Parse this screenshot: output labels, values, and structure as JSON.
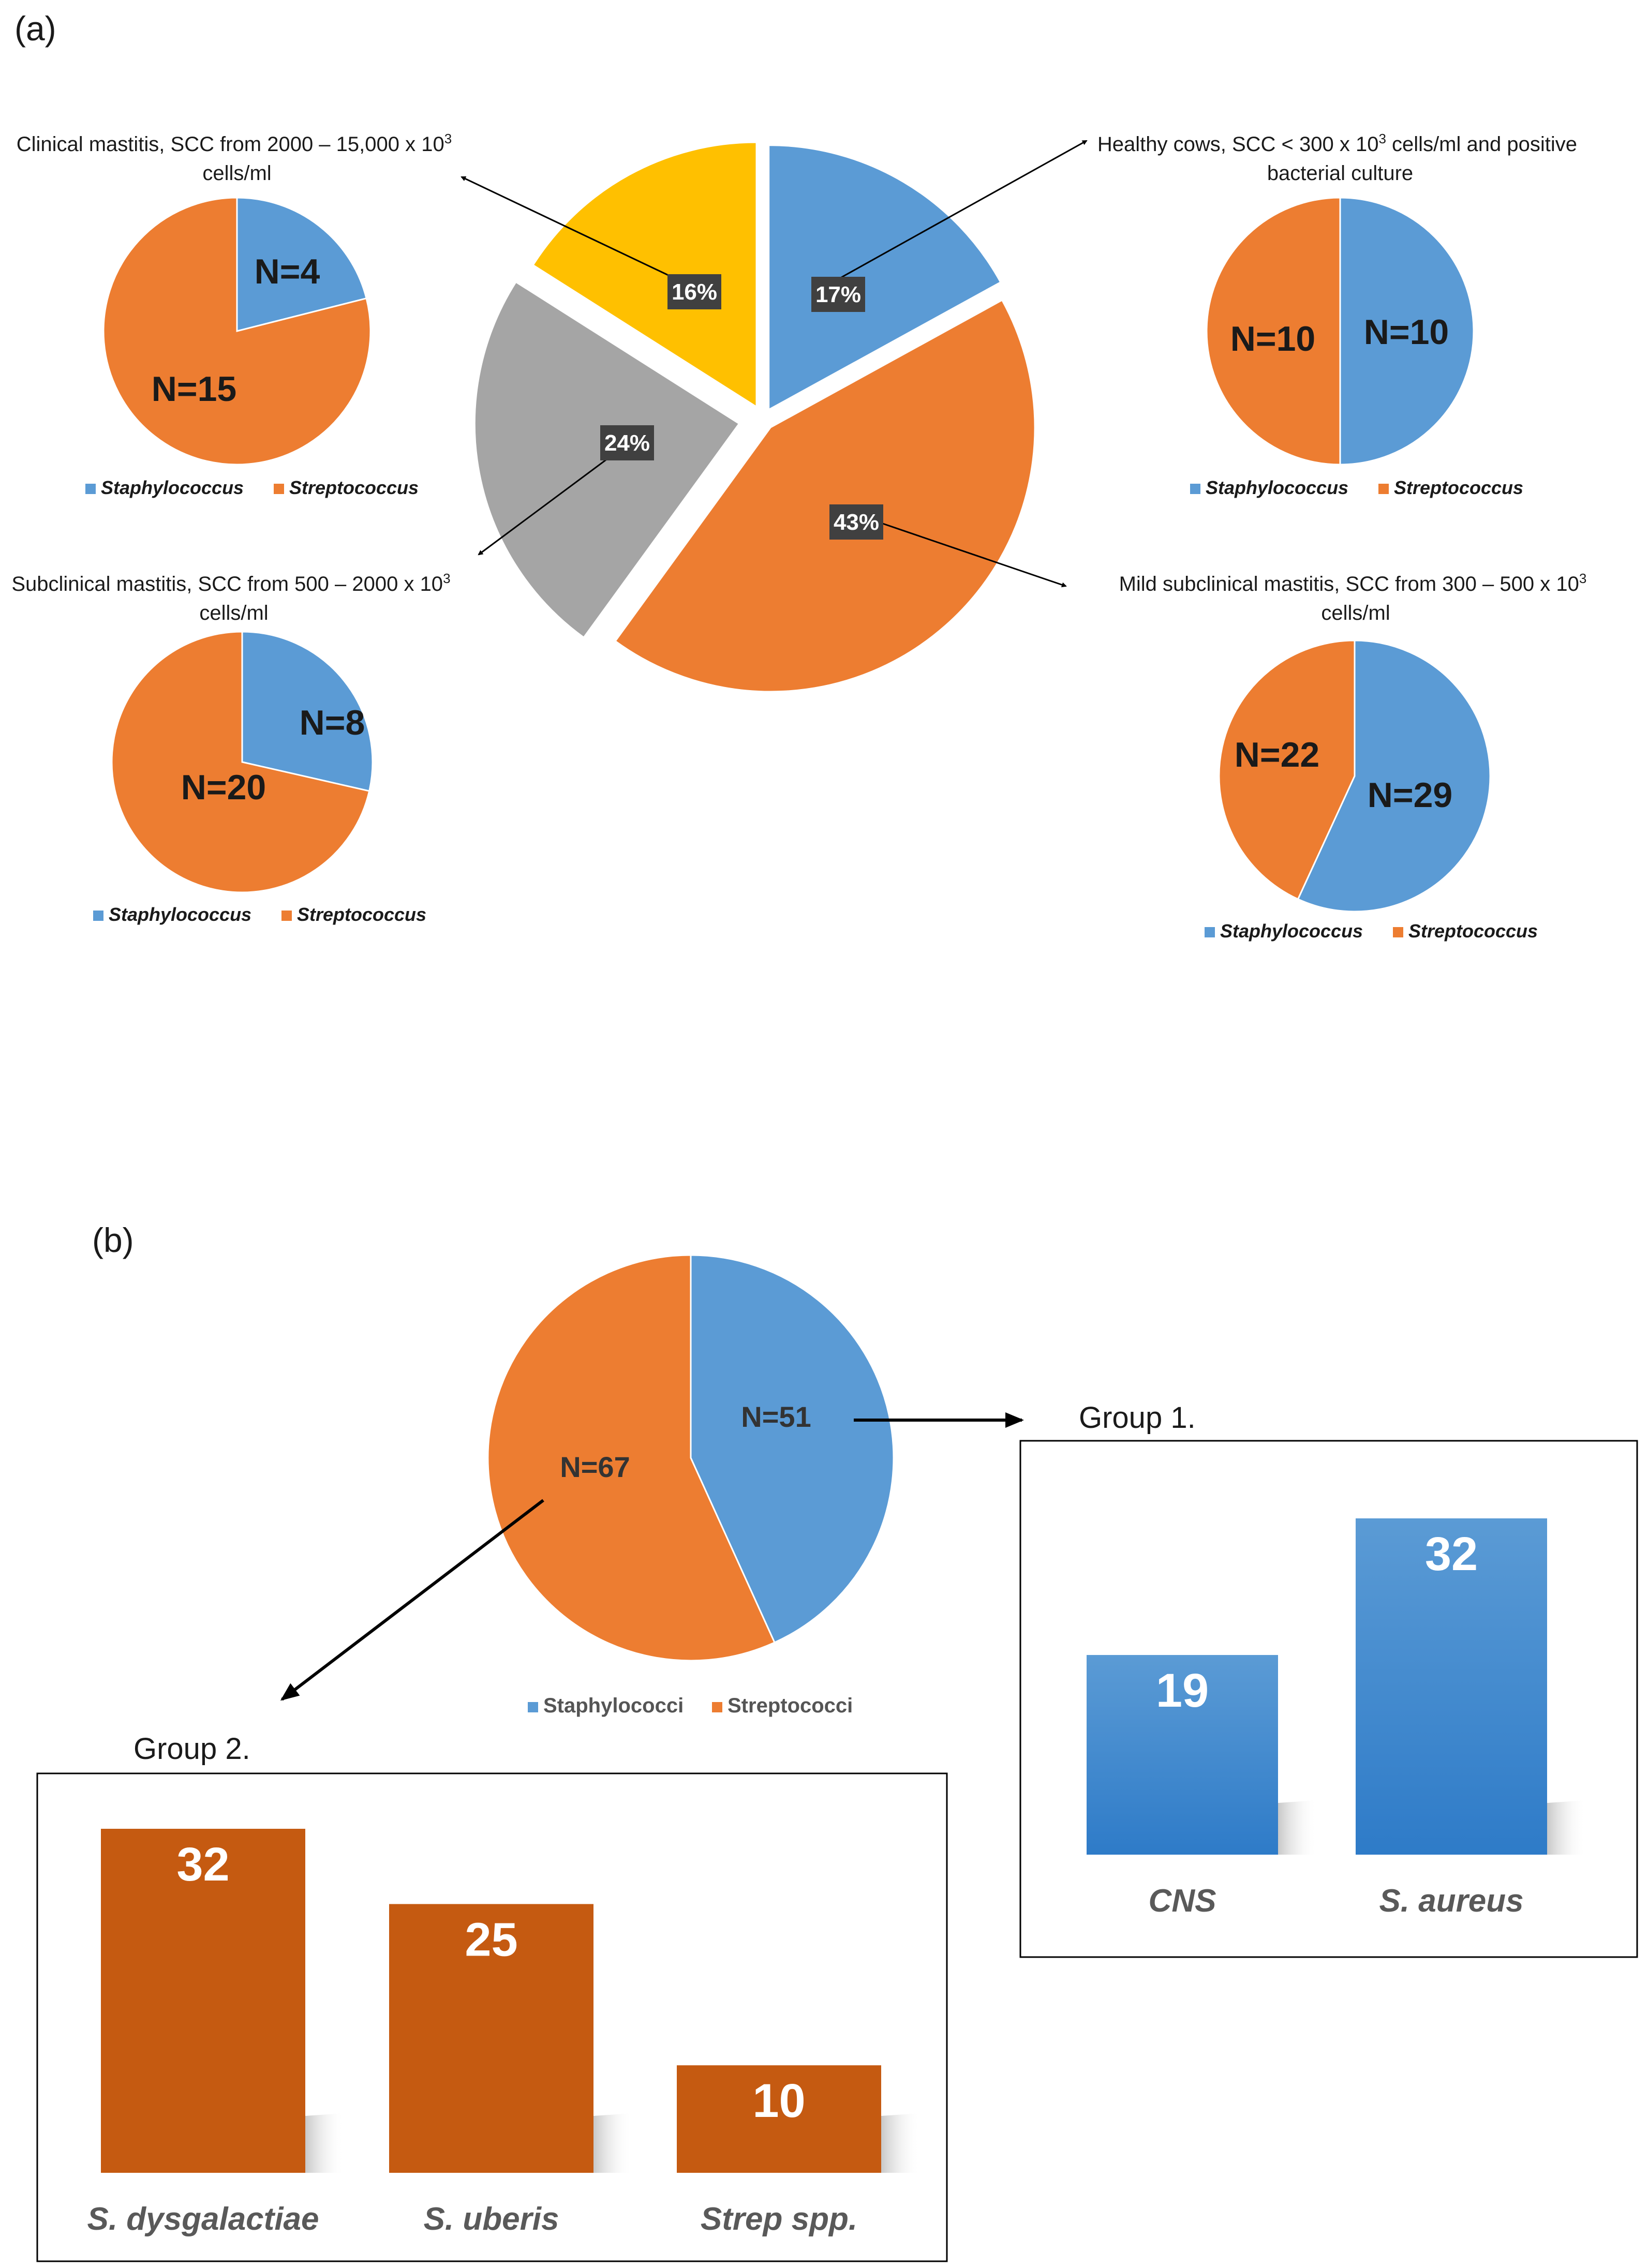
{
  "panel_a": {
    "label": "(a)"
  },
  "panel_b": {
    "label": "(b)"
  },
  "chart_data": [
    {
      "type": "pie",
      "id": "overall",
      "slices": [
        {
          "label": "17%",
          "value": 17,
          "color": "#5b9bd5"
        },
        {
          "label": "43%",
          "value": 43,
          "color": "#ed7d31"
        },
        {
          "label": "24%",
          "value": 24,
          "color": "#a5a5a5"
        },
        {
          "label": "16%",
          "value": 16,
          "color": "#ffc000"
        }
      ],
      "callouts": [
        "Healthy cows, SCC < 300 x 10³ cells/ml and positive bacterial culture",
        "Mild subclinical mastitis, SCC from 300 – 500 x 10³ cells/ml",
        "Subclinical mastitis, SCC from 500 – 2000 x 10³ cells/ml",
        "Clinical mastitis, SCC from 2000 – 15,000 x 10³ cells/ml"
      ]
    },
    {
      "type": "pie",
      "id": "clinical",
      "title": "Clinical mastitis, SCC from 2000 – 15,000 x 10³ cells/ml",
      "series": [
        {
          "name": "Staphylococcus",
          "value": 4,
          "label": "N=4"
        },
        {
          "name": "Streptococcus",
          "value": 15,
          "label": "N=15"
        }
      ],
      "legend": [
        "Staphylococcus",
        "Streptococcus"
      ]
    },
    {
      "type": "pie",
      "id": "healthy",
      "title": "Healthy cows, SCC < 300 x 10³ cells/ml and positive bacterial culture",
      "series": [
        {
          "name": "Staphylococcus",
          "value": 10,
          "label": "N=10"
        },
        {
          "name": "Streptococcus",
          "value": 10,
          "label": "N=10"
        }
      ],
      "legend": [
        "Staphylococcus",
        "Streptococcus"
      ]
    },
    {
      "type": "pie",
      "id": "subclinical",
      "title": "Subclinical mastitis, SCC from 500 – 2000 x 10³ cells/ml",
      "series": [
        {
          "name": "Staphylococcus",
          "value": 8,
          "label": "N=8"
        },
        {
          "name": "Streptococcus",
          "value": 20,
          "label": "N=20"
        }
      ],
      "legend": [
        "Staphylococcus",
        "Streptococcus"
      ]
    },
    {
      "type": "pie",
      "id": "mild",
      "title": "Mild subclinical mastitis, SCC from 300 – 500 x 10³ cells/ml",
      "series": [
        {
          "name": "Staphylococcus",
          "value": 29,
          "label": "N=29"
        },
        {
          "name": "Streptococcus",
          "value": 22,
          "label": "N=22"
        }
      ],
      "legend": [
        "Staphylococcus",
        "Streptococcus"
      ]
    },
    {
      "type": "pie",
      "id": "total",
      "series": [
        {
          "name": "Staphylococci",
          "value": 51,
          "label": "N=51"
        },
        {
          "name": "Streptococci",
          "value": 67,
          "label": "N=67"
        }
      ],
      "legend": [
        "Staphylococci",
        "Streptococci"
      ]
    },
    {
      "type": "bar",
      "id": "group1",
      "title": "Group 1.",
      "categories": [
        "CNS",
        "S. aureus"
      ],
      "values": [
        19,
        32
      ]
    },
    {
      "type": "bar",
      "id": "group2",
      "title": "Group 2.",
      "categories": [
        "S. dysgalactiae",
        "S. uberis",
        "Strep spp."
      ],
      "values": [
        32,
        25,
        10
      ]
    }
  ],
  "colors": {
    "blue": "#5b9bd5",
    "orange": "#ed7d31",
    "gray": "#a5a5a5",
    "yellow": "#ffc000",
    "dark_orange": "#c55a11",
    "bar_blue": "#4a90d9"
  }
}
